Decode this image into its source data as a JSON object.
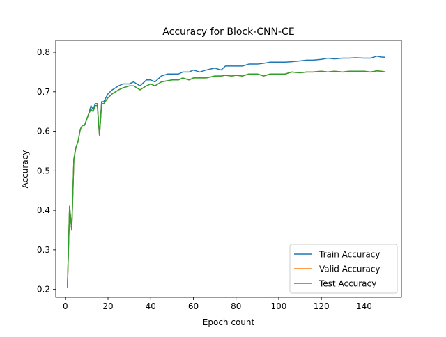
{
  "chart_data": {
    "type": "line",
    "title": "Accuracy for Block-CNN-CE",
    "xlabel": "Epoch count",
    "ylabel": "Accuracy",
    "xlim": [
      -4.5,
      157.5
    ],
    "ylim": [
      0.18,
      0.83
    ],
    "xticks": [
      0,
      20,
      40,
      60,
      80,
      100,
      120,
      140
    ],
    "yticks": [
      0.2,
      0.3,
      0.4,
      0.5,
      0.6,
      0.7,
      0.8
    ],
    "ytick_labels": [
      "0.2",
      "0.3",
      "0.4",
      "0.5",
      "0.6",
      "0.7",
      "0.8"
    ],
    "grid": false,
    "legend_position": "lower right",
    "series": [
      {
        "name": "Train Accuracy",
        "color": "#1f77b4",
        "points": [
          [
            1,
            0.21
          ],
          [
            2,
            0.41
          ],
          [
            3,
            0.35
          ],
          [
            4,
            0.53
          ],
          [
            5,
            0.56
          ],
          [
            6,
            0.575
          ],
          [
            7,
            0.605
          ],
          [
            8,
            0.615
          ],
          [
            9,
            0.615
          ],
          [
            10,
            0.63
          ],
          [
            11,
            0.645
          ],
          [
            12,
            0.665
          ],
          [
            13,
            0.655
          ],
          [
            14,
            0.67
          ],
          [
            15,
            0.67
          ],
          [
            16,
            0.59
          ],
          [
            17,
            0.675
          ],
          [
            18,
            0.675
          ],
          [
            20,
            0.695
          ],
          [
            22,
            0.705
          ],
          [
            25,
            0.715
          ],
          [
            27,
            0.72
          ],
          [
            30,
            0.72
          ],
          [
            32,
            0.725
          ],
          [
            35,
            0.715
          ],
          [
            38,
            0.73
          ],
          [
            40,
            0.73
          ],
          [
            42,
            0.725
          ],
          [
            45,
            0.74
          ],
          [
            48,
            0.745
          ],
          [
            50,
            0.745
          ],
          [
            53,
            0.745
          ],
          [
            55,
            0.75
          ],
          [
            58,
            0.75
          ],
          [
            60,
            0.755
          ],
          [
            63,
            0.75
          ],
          [
            66,
            0.755
          ],
          [
            70,
            0.76
          ],
          [
            73,
            0.755
          ],
          [
            75,
            0.765
          ],
          [
            78,
            0.765
          ],
          [
            80,
            0.765
          ],
          [
            83,
            0.765
          ],
          [
            86,
            0.77
          ],
          [
            90,
            0.77
          ],
          [
            93,
            0.772
          ],
          [
            96,
            0.775
          ],
          [
            100,
            0.775
          ],
          [
            103,
            0.775
          ],
          [
            106,
            0.776
          ],
          [
            110,
            0.778
          ],
          [
            113,
            0.78
          ],
          [
            116,
            0.78
          ],
          [
            120,
            0.782
          ],
          [
            123,
            0.785
          ],
          [
            126,
            0.783
          ],
          [
            130,
            0.785
          ],
          [
            133,
            0.785
          ],
          [
            136,
            0.786
          ],
          [
            140,
            0.785
          ],
          [
            143,
            0.785
          ],
          [
            146,
            0.79
          ],
          [
            148,
            0.788
          ],
          [
            150,
            0.787
          ]
        ]
      },
      {
        "name": "Valid Accuracy",
        "color": "#ff7f0e",
        "points": [
          [
            1,
            0.205
          ],
          [
            2,
            0.41
          ],
          [
            3,
            0.35
          ],
          [
            4,
            0.53
          ],
          [
            5,
            0.56
          ],
          [
            6,
            0.575
          ],
          [
            7,
            0.605
          ],
          [
            8,
            0.615
          ],
          [
            9,
            0.615
          ],
          [
            10,
            0.63
          ],
          [
            11,
            0.645
          ],
          [
            12,
            0.655
          ],
          [
            13,
            0.65
          ],
          [
            14,
            0.665
          ],
          [
            15,
            0.665
          ],
          [
            16,
            0.59
          ],
          [
            17,
            0.67
          ],
          [
            18,
            0.67
          ],
          [
            20,
            0.685
          ],
          [
            22,
            0.695
          ],
          [
            25,
            0.705
          ],
          [
            27,
            0.71
          ],
          [
            30,
            0.715
          ],
          [
            32,
            0.715
          ],
          [
            35,
            0.705
          ],
          [
            38,
            0.715
          ],
          [
            40,
            0.72
          ],
          [
            42,
            0.715
          ],
          [
            45,
            0.725
          ],
          [
            48,
            0.728
          ],
          [
            50,
            0.73
          ],
          [
            53,
            0.73
          ],
          [
            55,
            0.735
          ],
          [
            58,
            0.73
          ],
          [
            60,
            0.735
          ],
          [
            63,
            0.735
          ],
          [
            66,
            0.735
          ],
          [
            70,
            0.74
          ],
          [
            73,
            0.74
          ],
          [
            75,
            0.742
          ],
          [
            78,
            0.74
          ],
          [
            80,
            0.742
          ],
          [
            83,
            0.74
          ],
          [
            86,
            0.745
          ],
          [
            90,
            0.745
          ],
          [
            93,
            0.74
          ],
          [
            96,
            0.745
          ],
          [
            100,
            0.745
          ],
          [
            103,
            0.745
          ],
          [
            106,
            0.75
          ],
          [
            110,
            0.748
          ],
          [
            113,
            0.75
          ],
          [
            116,
            0.75
          ],
          [
            120,
            0.752
          ],
          [
            123,
            0.75
          ],
          [
            126,
            0.752
          ],
          [
            130,
            0.75
          ],
          [
            133,
            0.752
          ],
          [
            136,
            0.752
          ],
          [
            140,
            0.752
          ],
          [
            143,
            0.75
          ],
          [
            146,
            0.753
          ],
          [
            148,
            0.752
          ],
          [
            150,
            0.75
          ]
        ]
      },
      {
        "name": "Test Accuracy",
        "color": "#2ca02c",
        "points": [
          [
            1,
            0.205
          ],
          [
            2,
            0.41
          ],
          [
            3,
            0.35
          ],
          [
            4,
            0.53
          ],
          [
            5,
            0.56
          ],
          [
            6,
            0.575
          ],
          [
            7,
            0.605
          ],
          [
            8,
            0.615
          ],
          [
            9,
            0.615
          ],
          [
            10,
            0.63
          ],
          [
            11,
            0.645
          ],
          [
            12,
            0.655
          ],
          [
            13,
            0.65
          ],
          [
            14,
            0.665
          ],
          [
            15,
            0.665
          ],
          [
            16,
            0.59
          ],
          [
            17,
            0.67
          ],
          [
            18,
            0.67
          ],
          [
            20,
            0.685
          ],
          [
            22,
            0.695
          ],
          [
            25,
            0.705
          ],
          [
            27,
            0.71
          ],
          [
            30,
            0.715
          ],
          [
            32,
            0.715
          ],
          [
            35,
            0.705
          ],
          [
            38,
            0.715
          ],
          [
            40,
            0.72
          ],
          [
            42,
            0.715
          ],
          [
            45,
            0.725
          ],
          [
            48,
            0.728
          ],
          [
            50,
            0.73
          ],
          [
            53,
            0.73
          ],
          [
            55,
            0.735
          ],
          [
            58,
            0.73
          ],
          [
            60,
            0.735
          ],
          [
            63,
            0.735
          ],
          [
            66,
            0.735
          ],
          [
            70,
            0.74
          ],
          [
            73,
            0.74
          ],
          [
            75,
            0.742
          ],
          [
            78,
            0.74
          ],
          [
            80,
            0.742
          ],
          [
            83,
            0.74
          ],
          [
            86,
            0.745
          ],
          [
            90,
            0.745
          ],
          [
            93,
            0.74
          ],
          [
            96,
            0.745
          ],
          [
            100,
            0.745
          ],
          [
            103,
            0.745
          ],
          [
            106,
            0.75
          ],
          [
            110,
            0.748
          ],
          [
            113,
            0.75
          ],
          [
            116,
            0.75
          ],
          [
            120,
            0.752
          ],
          [
            123,
            0.75
          ],
          [
            126,
            0.752
          ],
          [
            130,
            0.75
          ],
          [
            133,
            0.752
          ],
          [
            136,
            0.752
          ],
          [
            140,
            0.752
          ],
          [
            143,
            0.75
          ],
          [
            146,
            0.753
          ],
          [
            148,
            0.752
          ],
          [
            150,
            0.75
          ]
        ]
      }
    ]
  }
}
